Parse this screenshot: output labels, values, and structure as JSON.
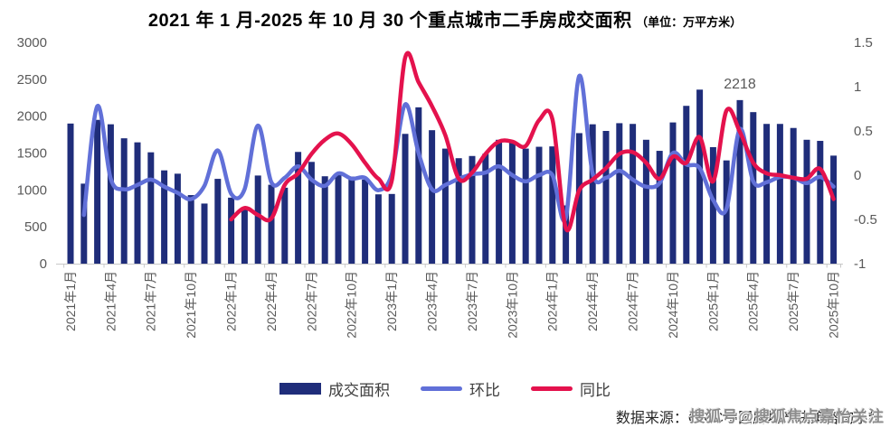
{
  "title": {
    "main": "2021 年 1 月-2025 年 10 月 30 个重点城市二手房成交面积",
    "unit": "（单位：万平方米）"
  },
  "legend": [
    {
      "label": "成交面积",
      "marker": "bar",
      "color": "#1f2d7a"
    },
    {
      "label": "环比",
      "marker": "line",
      "color": "#6170d8"
    },
    {
      "label": "同比",
      "marker": "line",
      "color": "#e4124d"
    }
  ],
  "source": {
    "label": "数据来源：CRIC中国房地产决策咨询系统"
  },
  "watermark": {
    "text": "搜狐号@搜狐焦点嘉怡关注"
  },
  "chart_data": {
    "type": "bar",
    "subtype": "combo-bar-line",
    "title": "2021 年 1 月-2025 年 10 月 30 个重点城市二手房成交面积（单位：万平方米）",
    "categories": [
      "2021年1月",
      "2021年2月",
      "2021年3月",
      "2021年4月",
      "2021年5月",
      "2021年6月",
      "2021年7月",
      "2021年8月",
      "2021年9月",
      "2021年10月",
      "2021年11月",
      "2021年12月",
      "2022年1月",
      "2022年2月",
      "2022年3月",
      "2022年4月",
      "2022年5月",
      "2022年6月",
      "2022年7月",
      "2022年8月",
      "2022年9月",
      "2022年10月",
      "2022年11月",
      "2022年12月",
      "2023年1月",
      "2023年2月",
      "2023年3月",
      "2023年4月",
      "2023年5月",
      "2023年6月",
      "2023年7月",
      "2023年8月",
      "2023年9月",
      "2023年10月",
      "2023年11月",
      "2023年12月",
      "2024年1月",
      "2024年2月",
      "2024年3月",
      "2024年4月",
      "2024年5月",
      "2024年6月",
      "2024年7月",
      "2024年8月",
      "2024年9月",
      "2024年10月",
      "2024年11月",
      "2024年12月",
      "2025年1月",
      "2025年2月",
      "2025年3月",
      "2025年4月",
      "2025年5月",
      "2025年6月",
      "2025年7月",
      "2025年8月",
      "2025年9月",
      "2025年10月"
    ],
    "x_tick_every": 3,
    "series": [
      {
        "name": "成交面积",
        "type": "bar",
        "axis": "left",
        "color": "#1f2d7a",
        "values": [
          1900,
          1085,
          1950,
          1890,
          1700,
          1645,
          1510,
          1265,
          1220,
          930,
          815,
          1150,
          895,
          750,
          1195,
          1070,
          1030,
          1515,
          1380,
          1185,
          1210,
          1180,
          1140,
          940,
          945,
          1760,
          2120,
          1810,
          1560,
          1430,
          1460,
          1490,
          1680,
          1650,
          1560,
          1585,
          1590,
          790,
          1770,
          1890,
          1800,
          1905,
          1895,
          1680,
          1530,
          1915,
          2140,
          2360,
          1580,
          1400,
          2218,
          2055,
          1895,
          1895,
          1840,
          1680,
          1665,
          1465
        ]
      },
      {
        "name": "环比",
        "type": "line",
        "axis": "right",
        "color": "#6170d8",
        "values": [
          null,
          -0.45,
          0.78,
          -0.04,
          -0.16,
          -0.11,
          -0.05,
          -0.13,
          -0.2,
          -0.27,
          -0.12,
          0.28,
          -0.21,
          -0.16,
          0.56,
          -0.08,
          -0.03,
          0.1,
          -0.05,
          -0.12,
          0.02,
          -0.04,
          -0.03,
          -0.17,
          0.01,
          0.8,
          0.25,
          -0.16,
          -0.11,
          -0.04,
          0.01,
          0.03,
          0.1,
          0.0,
          -0.07,
          0.0,
          0.0,
          -0.48,
          1.12,
          0.02,
          -0.03,
          0.05,
          -0.05,
          -0.13,
          -0.09,
          0.25,
          0.12,
          0.08,
          -0.28,
          -0.38,
          0.52,
          -0.07,
          -0.08,
          -0.02,
          -0.03,
          -0.09,
          -0.02,
          -0.13
        ]
      },
      {
        "name": "同比",
        "type": "line",
        "axis": "right",
        "color": "#e4124d",
        "values": [
          null,
          null,
          null,
          null,
          null,
          null,
          null,
          null,
          null,
          null,
          null,
          null,
          -0.5,
          -0.37,
          -0.45,
          -0.49,
          -0.11,
          0.02,
          0.24,
          0.4,
          0.47,
          0.35,
          0.14,
          -0.04,
          -0.06,
          1.33,
          1.05,
          0.78,
          0.45,
          -0.04,
          0.03,
          0.24,
          0.38,
          0.38,
          0.33,
          0.62,
          0.63,
          -0.6,
          -0.17,
          -0.05,
          0.08,
          0.24,
          0.26,
          0.14,
          -0.04,
          0.21,
          0.14,
          0.43,
          -0.07,
          0.73,
          0.49,
          0.14,
          0.02,
          0.0,
          -0.03,
          -0.04,
          0.07,
          -0.27
        ]
      }
    ],
    "left_axis": {
      "ticks": [
        0,
        500,
        1000,
        1500,
        2000,
        2500,
        3000
      ],
      "min": 0,
      "max": 3000
    },
    "right_axis": {
      "ticks": [
        -1,
        -0.5,
        0,
        0.5,
        1,
        1.5
      ],
      "min": -1,
      "max": 1.5
    },
    "annotation": {
      "text": "2218",
      "category": "2025年3月"
    },
    "grid": false,
    "legend_position": "bottom",
    "axis_text_color": "#595959",
    "axis_line_color": "#c8c8c8"
  }
}
